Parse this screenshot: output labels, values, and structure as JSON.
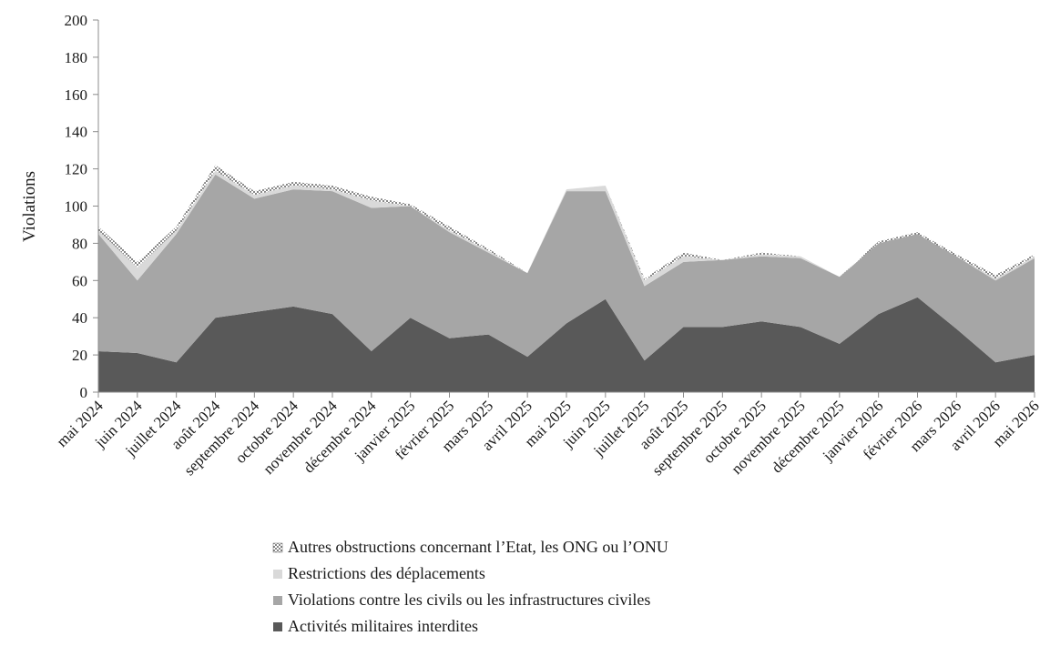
{
  "chart_data": {
    "type": "area",
    "stacked": true,
    "title": "",
    "xlabel": "",
    "ylabel": "Violations",
    "ylim": [
      0,
      200
    ],
    "yticks": [
      0,
      20,
      40,
      60,
      80,
      100,
      120,
      140,
      160,
      180,
      200
    ],
    "grid": false,
    "legend_position": "bottom",
    "categories": [
      "mai 2024",
      "juin 2024",
      "juillet 2024",
      "août 2024",
      "septembre 2024",
      "octobre 2024",
      "novembre 2024",
      "décembre 2024",
      "janvier 2025",
      "février 2025",
      "mars 2025",
      "avril 2025",
      "mai 2025",
      "juin 2025",
      "juillet 2025",
      "août 2025",
      "septembre 2025",
      "octobre 2025",
      "novembre 2025",
      "décembre 2025",
      "janvier 2026",
      "février 2026",
      "mars 2026",
      "avril 2026",
      "mai 2026"
    ],
    "series": [
      {
        "name": "Activités militaires interdites",
        "color": "#595959",
        "pattern": "solid",
        "values": [
          22,
          21,
          16,
          40,
          43,
          46,
          42,
          22,
          40,
          29,
          31,
          19,
          37,
          50,
          17,
          35,
          35,
          38,
          35,
          26,
          42,
          51,
          34,
          16,
          20
        ]
      },
      {
        "name": "Violations contre les civils ou les infrastructures civiles",
        "color": "#a6a6a6",
        "pattern": "solid",
        "values": [
          63,
          39,
          69,
          77,
          61,
          63,
          66,
          77,
          60,
          57,
          44,
          45,
          71,
          58,
          40,
          35,
          36,
          35,
          37,
          36,
          38,
          34,
          39,
          44,
          52
        ]
      },
      {
        "name": "Restrictions des déplacements",
        "color": "#d9d9d9",
        "pattern": "solid",
        "values": [
          2,
          7,
          2,
          2,
          2,
          2,
          1,
          4,
          0,
          1,
          1,
          0,
          1,
          3,
          3,
          3,
          0,
          1,
          1,
          0,
          0,
          0,
          0,
          1,
          1
        ]
      },
      {
        "name": "Autres obstructions concernant l’Etat, les ONG ou l’ONU",
        "color": "#ffffff",
        "pattern": "dotted",
        "values": [
          2,
          3,
          2,
          3,
          2,
          2,
          2,
          2,
          1,
          2,
          1,
          0,
          0,
          0,
          1,
          2,
          0,
          1,
          0,
          0,
          1,
          1,
          1,
          2,
          1
        ]
      }
    ]
  }
}
